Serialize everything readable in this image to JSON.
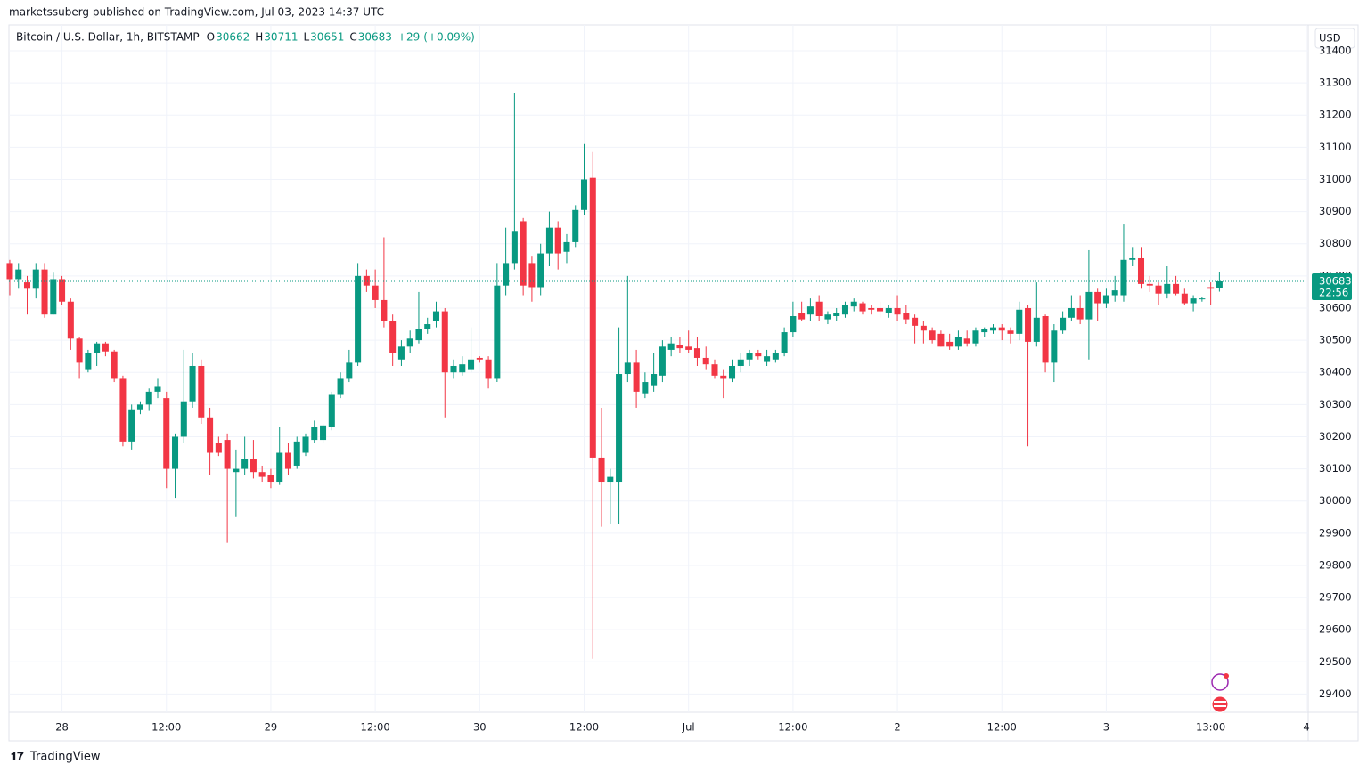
{
  "header": {
    "publisher": "marketssuberg published on TradingView.com, Jul 03, 2023 14:37 UTC",
    "footer": "TradingView"
  },
  "chart_data": {
    "type": "candlestick",
    "title": "Bitcoin / U.S. Dollar, 1h, BITSTAMP",
    "ohlc_letters": [
      "O",
      "H",
      "L",
      "C"
    ],
    "change": "+29",
    "change_percent": "(+0.09%)",
    "currency": "USD",
    "countdown": "22:56",
    "up_color": "#089981",
    "down_color": "#f23645",
    "ylim": [
      29260,
      31400
    ],
    "yticks": [
      29400,
      29500,
      29600,
      29700,
      29800,
      29900,
      30000,
      30100,
      30200,
      30300,
      30400,
      30500,
      30600,
      30700,
      30800,
      30900,
      31000,
      31100,
      31200,
      31300,
      31400
    ],
    "xlim": [
      -0.1,
      149.2
    ],
    "xticks": [
      {
        "value": 6,
        "label": "28"
      },
      {
        "value": 18,
        "label": "12:00"
      },
      {
        "value": 30,
        "label": "29"
      },
      {
        "value": 42,
        "label": "12:00"
      },
      {
        "value": 54,
        "label": "30"
      },
      {
        "value": 66,
        "label": "12:00"
      },
      {
        "value": 78,
        "label": "Jul"
      },
      {
        "value": 90,
        "label": "12:00"
      },
      {
        "value": 102,
        "label": "2"
      },
      {
        "value": 114,
        "label": "12:00"
      },
      {
        "value": 126,
        "label": "3"
      },
      {
        "value": 138,
        "label": "13:00"
      },
      {
        "value": 149,
        "label": "4"
      }
    ],
    "grid": true,
    "ohlc": [
      [
        30740,
        30750,
        30640,
        30690
      ],
      [
        30690,
        30740,
        30660,
        30720
      ],
      [
        30680,
        30700,
        30580,
        30660
      ],
      [
        30660,
        30740,
        30630,
        30720
      ],
      [
        30720,
        30740,
        30570,
        30580
      ],
      [
        30580,
        30710,
        30580,
        30690
      ],
      [
        30690,
        30700,
        30610,
        30620
      ],
      [
        30620,
        30630,
        30470,
        30505
      ],
      [
        30505,
        30510,
        30380,
        30430
      ],
      [
        30410,
        30470,
        30400,
        30460
      ],
      [
        30460,
        30495,
        30420,
        30490
      ],
      [
        30490,
        30495,
        30450,
        30465
      ],
      [
        30465,
        30470,
        30370,
        30380
      ],
      [
        30380,
        30390,
        30170,
        30185
      ],
      [
        30185,
        30300,
        30160,
        30285
      ],
      [
        30285,
        30310,
        30270,
        30300
      ],
      [
        30300,
        30350,
        30280,
        30340
      ],
      [
        30340,
        30380,
        30320,
        30355
      ],
      [
        30320,
        30340,
        30040,
        30100
      ],
      [
        30100,
        30210,
        30010,
        30200
      ],
      [
        30200,
        30470,
        30180,
        30310
      ],
      [
        30310,
        30460,
        30290,
        30420
      ],
      [
        30420,
        30440,
        30240,
        30260
      ],
      [
        30260,
        30290,
        30080,
        30150
      ],
      [
        30180,
        30200,
        30140,
        30150
      ],
      [
        30190,
        30210,
        29870,
        30100
      ],
      [
        30090,
        30160,
        29950,
        30100
      ],
      [
        30100,
        30200,
        30080,
        30130
      ],
      [
        30130,
        30190,
        30070,
        30090
      ],
      [
        30090,
        30110,
        30060,
        30075
      ],
      [
        30080,
        30100,
        30040,
        30060
      ],
      [
        30060,
        30230,
        30050,
        30150
      ],
      [
        30150,
        30180,
        30080,
        30100
      ],
      [
        30110,
        30200,
        30100,
        30185
      ],
      [
        30150,
        30210,
        30140,
        30200
      ],
      [
        30190,
        30250,
        30180,
        30230
      ],
      [
        30190,
        30240,
        30180,
        30235
      ],
      [
        30230,
        30340,
        30220,
        30330
      ],
      [
        30330,
        30400,
        30320,
        30380
      ],
      [
        30380,
        30470,
        30370,
        30430
      ],
      [
        30430,
        30740,
        30420,
        30700
      ],
      [
        30700,
        30720,
        30650,
        30670
      ],
      [
        30670,
        30720,
        30600,
        30625
      ],
      [
        30625,
        30820,
        30540,
        30560
      ],
      [
        30560,
        30580,
        30420,
        30460
      ],
      [
        30440,
        30500,
        30420,
        30480
      ],
      [
        30480,
        30530,
        30460,
        30505
      ],
      [
        30500,
        30650,
        30490,
        30535
      ],
      [
        30535,
        30570,
        30520,
        30550
      ],
      [
        30560,
        30620,
        30540,
        30590
      ],
      [
        30590,
        30600,
        30260,
        30400
      ],
      [
        30400,
        30440,
        30380,
        30420
      ],
      [
        30400,
        30450,
        30390,
        30425
      ],
      [
        30410,
        30540,
        30400,
        30440
      ],
      [
        30445,
        30450,
        30430,
        30440
      ],
      [
        30440,
        30450,
        30350,
        30380
      ],
      [
        30380,
        30740,
        30370,
        30670
      ],
      [
        30670,
        30850,
        30640,
        30740
      ],
      [
        30740,
        31270,
        30720,
        30840
      ],
      [
        30870,
        30880,
        30640,
        30670
      ],
      [
        30740,
        30760,
        30620,
        30665
      ],
      [
        30665,
        30800,
        30640,
        30770
      ],
      [
        30770,
        30900,
        30730,
        30850
      ],
      [
        30850,
        30870,
        30720,
        30770
      ],
      [
        30775,
        30830,
        30740,
        30805
      ],
      [
        30805,
        30920,
        30790,
        30905
      ],
      [
        30905,
        31110,
        30890,
        31000
      ],
      [
        31005,
        31085,
        29510,
        30135
      ],
      [
        30135,
        30290,
        29920,
        30060
      ],
      [
        30060,
        30100,
        29930,
        30075
      ],
      [
        30060,
        30540,
        29930,
        30395
      ],
      [
        30395,
        30700,
        30370,
        30430
      ],
      [
        30430,
        30470,
        30290,
        30340
      ],
      [
        30335,
        30400,
        30320,
        30370
      ],
      [
        30360,
        30460,
        30340,
        30395
      ],
      [
        30390,
        30500,
        30370,
        30480
      ],
      [
        30470,
        30510,
        30450,
        30490
      ],
      [
        30485,
        30510,
        30460,
        30475
      ],
      [
        30480,
        30530,
        30460,
        30470
      ],
      [
        30475,
        30510,
        30420,
        30445
      ],
      [
        30445,
        30480,
        30410,
        30425
      ],
      [
        30425,
        30440,
        30380,
        30390
      ],
      [
        30390,
        30410,
        30320,
        30380
      ],
      [
        30380,
        30440,
        30370,
        30420
      ],
      [
        30420,
        30460,
        30400,
        30440
      ],
      [
        30440,
        30470,
        30420,
        30460
      ],
      [
        30460,
        30470,
        30440,
        30450
      ],
      [
        30435,
        30470,
        30420,
        30450
      ],
      [
        30440,
        30470,
        30430,
        30460
      ],
      [
        30460,
        30540,
        30450,
        30525
      ],
      [
        30525,
        30620,
        30510,
        30575
      ],
      [
        30585,
        30620,
        30560,
        30565
      ],
      [
        30580,
        30630,
        30560,
        30605
      ],
      [
        30620,
        30640,
        30560,
        30575
      ],
      [
        30565,
        30590,
        30550,
        30580
      ],
      [
        30575,
        30600,
        30560,
        30585
      ],
      [
        30580,
        30620,
        30570,
        30610
      ],
      [
        30605,
        30630,
        30590,
        30620
      ],
      [
        30615,
        30620,
        30580,
        30590
      ],
      [
        30600,
        30610,
        30580,
        30595
      ],
      [
        30600,
        30620,
        30570,
        30590
      ],
      [
        30585,
        30610,
        30570,
        30600
      ],
      [
        30600,
        30640,
        30560,
        30580
      ],
      [
        30585,
        30610,
        30550,
        30565
      ],
      [
        30570,
        30580,
        30490,
        30545
      ],
      [
        30545,
        30560,
        30490,
        30530
      ],
      [
        30530,
        30540,
        30490,
        30500
      ],
      [
        30520,
        30530,
        30480,
        30480
      ],
      [
        30495,
        30520,
        30470,
        30480
      ],
      [
        30480,
        30530,
        30470,
        30510
      ],
      [
        30505,
        30530,
        30480,
        30490
      ],
      [
        30490,
        30540,
        30480,
        30530
      ],
      [
        30525,
        30540,
        30510,
        30535
      ],
      [
        30530,
        30550,
        30520,
        30540
      ],
      [
        30540,
        30550,
        30500,
        30530
      ],
      [
        30530,
        30540,
        30490,
        30520
      ],
      [
        30520,
        30620,
        30500,
        30595
      ],
      [
        30600,
        30610,
        30170,
        30495
      ],
      [
        30495,
        30680,
        30480,
        30570
      ],
      [
        30575,
        30580,
        30400,
        30430
      ],
      [
        30430,
        30550,
        30370,
        30530
      ],
      [
        30530,
        30590,
        30520,
        30570
      ],
      [
        30570,
        30640,
        30560,
        30600
      ],
      [
        30600,
        30640,
        30550,
        30565
      ],
      [
        30565,
        30780,
        30440,
        30650
      ],
      [
        30650,
        30660,
        30560,
        30615
      ],
      [
        30615,
        30660,
        30600,
        30640
      ],
      [
        30640,
        30700,
        30620,
        30655
      ],
      [
        30640,
        30860,
        30620,
        30750
      ],
      [
        30750,
        30790,
        30730,
        30755
      ],
      [
        30755,
        30790,
        30660,
        30675
      ],
      [
        30675,
        30700,
        30650,
        30670
      ],
      [
        30670,
        30680,
        30610,
        30645
      ],
      [
        30645,
        30730,
        30630,
        30675
      ],
      [
        30675,
        30700,
        30640,
        30645
      ],
      [
        30645,
        30660,
        30610,
        30615
      ],
      [
        30615,
        30640,
        30590,
        30630
      ],
      [
        30628,
        30635,
        30620,
        30630
      ],
      [
        30665,
        30680,
        30610,
        30660
      ],
      [
        30662,
        30711,
        30651,
        30683
      ]
    ]
  }
}
